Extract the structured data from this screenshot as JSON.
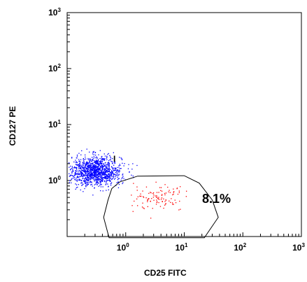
{
  "chart_data": {
    "type": "scatter",
    "xlabel": "CD25 FITC",
    "ylabel": "CD127 PE",
    "xscale": "log",
    "yscale": "log",
    "xlim": [
      0.1,
      1000
    ],
    "ylim": [
      0.1,
      1000
    ],
    "x_ticks": [
      {
        "value": 1,
        "base": "10",
        "exp": "0"
      },
      {
        "value": 10,
        "base": "10",
        "exp": "1"
      },
      {
        "value": 100,
        "base": "10",
        "exp": "2"
      },
      {
        "value": 1000,
        "base": "10",
        "exp": "3"
      }
    ],
    "y_ticks": [
      {
        "value": 1,
        "base": "10",
        "exp": "0"
      },
      {
        "value": 10,
        "base": "10",
        "exp": "1"
      },
      {
        "value": 100,
        "base": "10",
        "exp": "2"
      },
      {
        "value": 1000,
        "base": "10",
        "exp": "3"
      }
    ],
    "series": [
      {
        "color": "#0000ff",
        "count": 1200,
        "center": [
          0.3,
          1.5
        ],
        "spread_log10": [
          0.22,
          0.13
        ],
        "x_range": [
          0.1,
          1.8
        ],
        "y_range": [
          0.2,
          4.5
        ]
      },
      {
        "color": "#ff0000",
        "count": 110,
        "center": [
          3.5,
          0.5
        ],
        "spread_log10": [
          0.25,
          0.12
        ],
        "x_range": [
          1.2,
          14
        ],
        "y_range": [
          0.18,
          1.0
        ]
      }
    ],
    "gate": {
      "label": "8.1%",
      "polygon": [
        [
          0.5,
          0.45
        ],
        [
          0.58,
          0.72
        ],
        [
          0.8,
          0.95
        ],
        [
          1.6,
          1.2
        ],
        [
          10,
          1.22
        ],
        [
          18,
          0.9
        ],
        [
          30,
          0.45
        ],
        [
          38,
          0.22
        ],
        [
          22,
          0.095
        ],
        [
          0.52,
          0.095
        ],
        [
          0.42,
          0.22
        ]
      ]
    },
    "marker": {
      "label": "I",
      "x": 0.65,
      "y": 2.05
    }
  }
}
